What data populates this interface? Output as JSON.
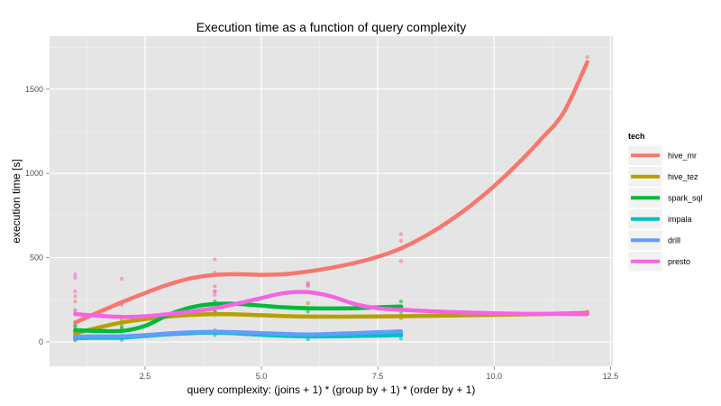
{
  "chart_data": {
    "type": "line",
    "title": "Execution time as a function of query complexity",
    "xlabel": "query complexity: (joins + 1) * (group by + 1) * (order by + 1)",
    "ylabel": "execution time [s]",
    "xlim": [
      0.45,
      12.55
    ],
    "ylim": [
      -145,
      1815
    ],
    "xticks": [
      2.5,
      5.0,
      7.5,
      10.0,
      12.5
    ],
    "xtick_labels": [
      "2.5",
      "5.0",
      "7.5",
      "10.0",
      "12.5"
    ],
    "yticks": [
      0,
      500,
      1000,
      1500
    ],
    "ytick_labels": [
      "0",
      "500",
      "1000",
      "1500"
    ],
    "grid": true,
    "legend": {
      "title": "tech",
      "position": "right"
    },
    "series": [
      {
        "name": "hive_mr",
        "color": "#F8766D",
        "curve": [
          [
            1,
            115
          ],
          [
            1.5,
            175
          ],
          [
            2,
            235
          ],
          [
            2.5,
            290
          ],
          [
            3,
            340
          ],
          [
            3.5,
            378
          ],
          [
            4,
            398
          ],
          [
            4.5,
            402
          ],
          [
            5,
            398
          ],
          [
            5.5,
            402
          ],
          [
            6,
            418
          ],
          [
            6.5,
            440
          ],
          [
            7,
            468
          ],
          [
            7.5,
            505
          ],
          [
            8,
            555
          ],
          [
            8.5,
            625
          ],
          [
            9,
            710
          ],
          [
            9.5,
            810
          ],
          [
            10,
            925
          ],
          [
            10.5,
            1055
          ],
          [
            11,
            1200
          ],
          [
            11.5,
            1365
          ],
          [
            12,
            1660
          ]
        ],
        "points": [
          [
            1,
            180
          ],
          [
            1,
            240
          ],
          [
            1,
            270
          ],
          [
            2,
            230
          ],
          [
            2,
            375
          ],
          [
            4,
            300
          ],
          [
            4,
            330
          ],
          [
            4,
            410
          ],
          [
            4,
            490
          ],
          [
            6,
            350
          ],
          [
            6,
            340
          ],
          [
            8,
            480
          ],
          [
            8,
            600
          ],
          [
            8,
            640
          ],
          [
            12,
            1660
          ],
          [
            12,
            1690
          ]
        ]
      },
      {
        "name": "hive_tez",
        "color": "#B79F00",
        "curve": [
          [
            1,
            50
          ],
          [
            1.5,
            85
          ],
          [
            2,
            115
          ],
          [
            2.5,
            135
          ],
          [
            3,
            150
          ],
          [
            3.5,
            160
          ],
          [
            4,
            165
          ],
          [
            4.5,
            163
          ],
          [
            5,
            158
          ],
          [
            5.5,
            153
          ],
          [
            6,
            150
          ],
          [
            7,
            150
          ],
          [
            8,
            152
          ],
          [
            9,
            156
          ],
          [
            10,
            160
          ],
          [
            11,
            165
          ],
          [
            12,
            172
          ]
        ],
        "points": [
          [
            1,
            40
          ],
          [
            1,
            55
          ],
          [
            2,
            130
          ],
          [
            2,
            110
          ],
          [
            4,
            175
          ],
          [
            4,
            160
          ],
          [
            6,
            230
          ],
          [
            6,
            150
          ],
          [
            8,
            160
          ],
          [
            8,
            140
          ],
          [
            12,
            175
          ],
          [
            12,
            170
          ]
        ]
      },
      {
        "name": "spark_sql",
        "color": "#00BA38",
        "curve": [
          [
            1,
            70
          ],
          [
            1.5,
            65
          ],
          [
            2,
            65
          ],
          [
            2.5,
            95
          ],
          [
            3,
            160
          ],
          [
            3.5,
            205
          ],
          [
            4,
            225
          ],
          [
            4.5,
            225
          ],
          [
            5,
            215
          ],
          [
            5.5,
            205
          ],
          [
            6,
            200
          ],
          [
            6.5,
            198
          ],
          [
            7,
            200
          ],
          [
            7.5,
            205
          ],
          [
            8,
            210
          ]
        ],
        "points": [
          [
            1,
            60
          ],
          [
            1,
            90
          ],
          [
            1,
            100
          ],
          [
            2,
            80
          ],
          [
            2,
            90
          ],
          [
            4,
            180
          ],
          [
            4,
            240
          ],
          [
            6,
            180
          ],
          [
            6,
            200
          ],
          [
            8,
            200
          ],
          [
            8,
            240
          ],
          [
            8,
            180
          ]
        ]
      },
      {
        "name": "impala",
        "color": "#00BFC4",
        "curve": [
          [
            1,
            22
          ],
          [
            1.5,
            24
          ],
          [
            2,
            25
          ],
          [
            2.5,
            35
          ],
          [
            3,
            45
          ],
          [
            3.5,
            52
          ],
          [
            4,
            55
          ],
          [
            4.5,
            50
          ],
          [
            5,
            42
          ],
          [
            5.5,
            36
          ],
          [
            6,
            32
          ],
          [
            6.5,
            33
          ],
          [
            7,
            35
          ],
          [
            7.5,
            37
          ],
          [
            8,
            40
          ]
        ],
        "points": [
          [
            1,
            10
          ],
          [
            1,
            30
          ],
          [
            2,
            20
          ],
          [
            2,
            30
          ],
          [
            4,
            60
          ],
          [
            4,
            40
          ],
          [
            6,
            15
          ],
          [
            6,
            40
          ],
          [
            8,
            20
          ],
          [
            8,
            50
          ]
        ]
      },
      {
        "name": "drill",
        "color": "#619CFF",
        "curve": [
          [
            1,
            30
          ],
          [
            1.5,
            32
          ],
          [
            2,
            33
          ],
          [
            2.5,
            40
          ],
          [
            3,
            50
          ],
          [
            3.5,
            57
          ],
          [
            4,
            60
          ],
          [
            4.5,
            57
          ],
          [
            5,
            52
          ],
          [
            5.5,
            47
          ],
          [
            6,
            44
          ],
          [
            6.5,
            47
          ],
          [
            7,
            52
          ],
          [
            7.5,
            57
          ],
          [
            8,
            62
          ]
        ],
        "points": [
          [
            1,
            10
          ],
          [
            1,
            20
          ],
          [
            2,
            10
          ],
          [
            2,
            20
          ],
          [
            4,
            50
          ],
          [
            4,
            70
          ],
          [
            6,
            30
          ],
          [
            6,
            40
          ],
          [
            8,
            50
          ],
          [
            8,
            60
          ]
        ]
      },
      {
        "name": "presto",
        "color": "#F564E3",
        "curve": [
          [
            1,
            165
          ],
          [
            1.5,
            155
          ],
          [
            2,
            148
          ],
          [
            2.5,
            152
          ],
          [
            3,
            165
          ],
          [
            3.5,
            180
          ],
          [
            4,
            200
          ],
          [
            4.5,
            228
          ],
          [
            5,
            260
          ],
          [
            5.5,
            290
          ],
          [
            6,
            295
          ],
          [
            6.5,
            270
          ],
          [
            7,
            225
          ],
          [
            7.5,
            200
          ],
          [
            8,
            190
          ],
          [
            9,
            178
          ],
          [
            10,
            170
          ],
          [
            11,
            166
          ],
          [
            12,
            165
          ]
        ],
        "points": [
          [
            1,
            380
          ],
          [
            1,
            400
          ],
          [
            1,
            300
          ],
          [
            1,
            190
          ],
          [
            2,
            220
          ],
          [
            2,
            230
          ],
          [
            4,
            280
          ],
          [
            4,
            300
          ],
          [
            6,
            330
          ],
          [
            6,
            340
          ],
          [
            8,
            190
          ],
          [
            12,
            170
          ],
          [
            12,
            180
          ]
        ]
      }
    ]
  }
}
